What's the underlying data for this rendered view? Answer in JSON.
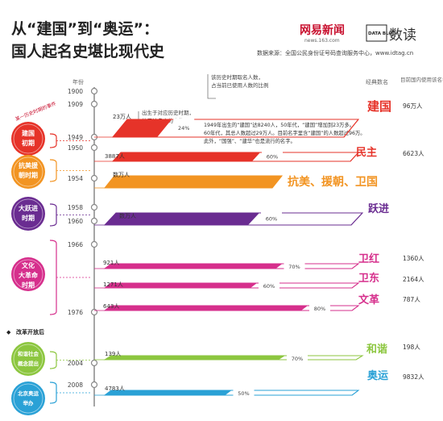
{
  "header": {
    "title_line1": "从“建国”到“奥运”：",
    "title_line2": "国人起名史堪比现代史",
    "brand_logo_text": "网易新闻",
    "brand_logo_sub": "news.163.com",
    "datablog_text": "DATA BLOG",
    "shudu_text": "数读",
    "source": "数据来源：全国公民身份证号码查询服务中心，www.idtag.cn"
  },
  "column_headers": {
    "year": "年份",
    "classic_name": "经典数名",
    "current_users": "目前国内使用该名名字人数"
  },
  "timeline": {
    "era_bracket_label": "某一历史时期的事件",
    "reform_label": "改革开放后",
    "eras": [
      {
        "label": "建国初期",
        "color": "#e63329"
      },
      {
        "label": "抗美援朝时期",
        "color": "#f29422"
      },
      {
        "label": "大跃进时期",
        "color": "#6a2c91"
      },
      {
        "label": "文化大革命时期",
        "color": "#d62f8c"
      },
      {
        "label": "和谐社会概念提出",
        "color": "#8cc63f"
      },
      {
        "label": "北京奥运举办",
        "color": "#2aa1d6"
      }
    ]
  },
  "annotations": {
    "legend_line1": "该历史时期取名人数，",
    "legend_line2": "占当前已使用人数的比例",
    "birth_note_line1": "出生于对应历史时期，",
    "birth_note_line2": "使用该名字的人数",
    "jianguo_note_1": "1949年出生的“建国”达8240人，50年代，“建国”增加到23万多。",
    "jianguo_note_2": "60年代，其总人数超过29万人。目前名字里含“建国”的人数超过96万。",
    "jianguo_note_3": "此外，“国强”、“建华”也是流行的名字。"
  },
  "chart_data": {
    "type": "bar",
    "title": "从“建国”到“奥运”：国人起名史堪比现代史",
    "year_ticks": [
      1900,
      1909,
      1949,
      1950,
      1954,
      1958,
      1960,
      1966,
      1976,
      2004,
      2008
    ],
    "series": [
      {
        "name": "建国",
        "color": "#e63329",
        "period_count_label": "23万人",
        "share_label": "24%",
        "share": 24,
        "current_users": "96万人",
        "year": 1949
      },
      {
        "name": "民主",
        "color": "#e63329",
        "period_count_label": "3887人",
        "share_label": "60%",
        "share": 60,
        "current_users": "6623人",
        "year": 1950
      },
      {
        "name": "抗美、援朝、卫国",
        "color": "#f29422",
        "period_count_label": "数万人",
        "share_label": "",
        "share": null,
        "current_users": "",
        "year": 1954
      },
      {
        "name": "跃进",
        "color": "#6a2c91",
        "period_count_label": "数万人",
        "share_label": "60%",
        "share": 60,
        "current_users": "",
        "year": 1958
      },
      {
        "name": "卫红",
        "color": "#d62f8c",
        "period_count_label": "921人",
        "share_label": "70%",
        "share": 70,
        "current_users": "1360人",
        "year": 1966
      },
      {
        "name": "卫东",
        "color": "#d62f8c",
        "period_count_label": "1271人",
        "share_label": "60%",
        "share": 60,
        "current_users": "2164人",
        "year": 1966
      },
      {
        "name": "文革",
        "color": "#d62f8c",
        "period_count_label": "643人",
        "share_label": "80%",
        "share": 80,
        "current_users": "787人",
        "year": 1976
      },
      {
        "name": "和谐",
        "color": "#8cc63f",
        "period_count_label": "139人",
        "share_label": "70%",
        "share": 70,
        "current_users": "198人",
        "year": 2004
      },
      {
        "name": "奥运",
        "color": "#2aa1d6",
        "period_count_label": "4783人",
        "share_label": "50%",
        "share": 50,
        "current_users": "9832人",
        "year": 2008
      }
    ]
  }
}
